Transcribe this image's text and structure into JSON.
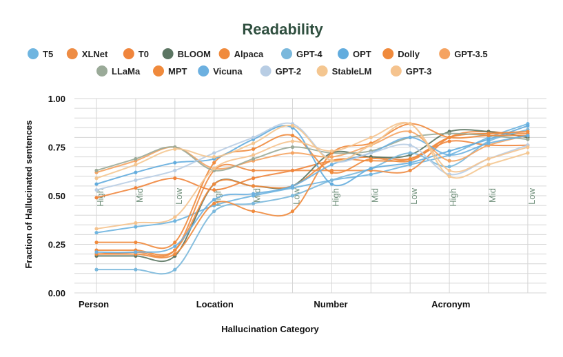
{
  "chart_data": {
    "type": "line",
    "title": "Readability",
    "xlabel": "Hallucination Category",
    "ylabel": "Fraction of Hallucinated sentences",
    "ylim": [
      0,
      1
    ],
    "yticks": [
      "0.00",
      "0.25",
      "0.50",
      "0.75",
      "1.00"
    ],
    "categories": [
      "Person",
      "Location",
      "Number",
      "Acronym"
    ],
    "levels": [
      "High",
      "Mid",
      "Low"
    ],
    "x": [
      "Person-High",
      "Person-Mid",
      "Person-Low",
      "Location-High",
      "Location-Mid",
      "Location-Low",
      "Number-High",
      "Number-Mid",
      "Number-Low",
      "Acronym-High",
      "Acronym-Mid",
      "Acronym-Low"
    ],
    "grid": true,
    "legend_position": "top",
    "series": [
      {
        "name": "T5",
        "color": "#6fb5e0",
        "values": [
          0.31,
          0.34,
          0.37,
          0.45,
          0.5,
          0.54,
          0.58,
          0.61,
          0.66,
          0.71,
          0.8,
          0.87
        ]
      },
      {
        "name": "XLNet",
        "color": "#ee8c44",
        "values": [
          0.2,
          0.21,
          0.22,
          0.63,
          0.63,
          0.63,
          0.63,
          0.63,
          0.63,
          0.8,
          0.83,
          0.8
        ]
      },
      {
        "name": "T0",
        "color": "#f0853c",
        "values": [
          0.49,
          0.54,
          0.59,
          0.53,
          0.59,
          0.63,
          0.68,
          0.7,
          0.69,
          0.78,
          0.76,
          0.76
        ]
      },
      {
        "name": "BLOOM",
        "color": "#5b7562",
        "values": [
          0.19,
          0.19,
          0.19,
          0.56,
          0.55,
          0.55,
          0.72,
          0.7,
          0.71,
          0.83,
          0.83,
          0.8
        ]
      },
      {
        "name": "Alpaca",
        "color": "#f08a3c",
        "values": [
          0.26,
          0.26,
          0.26,
          0.67,
          0.74,
          0.81,
          0.62,
          0.69,
          0.68,
          0.8,
          0.82,
          0.82
        ]
      },
      {
        "name": "GPT-4",
        "color": "#7ab8dc",
        "values": [
          0.12,
          0.12,
          0.12,
          0.42,
          0.46,
          0.5,
          0.58,
          0.64,
          0.72,
          0.65,
          0.78,
          0.84
        ]
      },
      {
        "name": "OPT",
        "color": "#62acde",
        "values": [
          0.56,
          0.62,
          0.67,
          0.69,
          0.79,
          0.85,
          0.56,
          0.64,
          0.67,
          0.73,
          0.79,
          0.86
        ]
      },
      {
        "name": "Dolly",
        "color": "#f08a3c",
        "values": [
          0.22,
          0.22,
          0.22,
          0.56,
          0.55,
          0.55,
          0.68,
          0.68,
          0.69,
          0.8,
          0.82,
          0.83
        ]
      },
      {
        "name": "GPT-3.5",
        "color": "#f5a361",
        "values": [
          0.62,
          0.68,
          0.75,
          0.64,
          0.68,
          0.72,
          0.7,
          0.76,
          0.83,
          0.68,
          0.76,
          0.81
        ]
      },
      {
        "name": "LLaMa",
        "color": "#9aaa98",
        "values": [
          0.63,
          0.69,
          0.75,
          0.63,
          0.69,
          0.75,
          0.72,
          0.73,
          0.8,
          0.82,
          0.81,
          0.79
        ]
      },
      {
        "name": "MPT",
        "color": "#f08a3c",
        "values": [
          0.2,
          0.2,
          0.2,
          0.46,
          0.42,
          0.42,
          0.72,
          0.77,
          0.87,
          0.8,
          0.81,
          0.81
        ]
      },
      {
        "name": "Vicuna",
        "color": "#6cb0e0",
        "values": [
          0.21,
          0.21,
          0.24,
          0.48,
          0.51,
          0.55,
          0.66,
          0.72,
          0.8,
          0.71,
          0.77,
          0.81
        ]
      },
      {
        "name": "GPT-2",
        "color": "#b8cde4",
        "values": [
          0.53,
          0.58,
          0.63,
          0.72,
          0.8,
          0.87,
          0.68,
          0.72,
          0.76,
          0.61,
          0.69,
          0.76
        ]
      },
      {
        "name": "StableLM",
        "color": "#f4c690",
        "values": [
          0.59,
          0.66,
          0.74,
          0.7,
          0.77,
          0.86,
          0.68,
          0.76,
          0.87,
          0.6,
          0.66,
          0.72
        ]
      },
      {
        "name": "GPT-3",
        "color": "#f5c38e",
        "values": [
          0.33,
          0.36,
          0.39,
          0.64,
          0.71,
          0.78,
          0.73,
          0.8,
          0.87,
          0.63,
          0.69,
          0.75
        ]
      }
    ]
  }
}
